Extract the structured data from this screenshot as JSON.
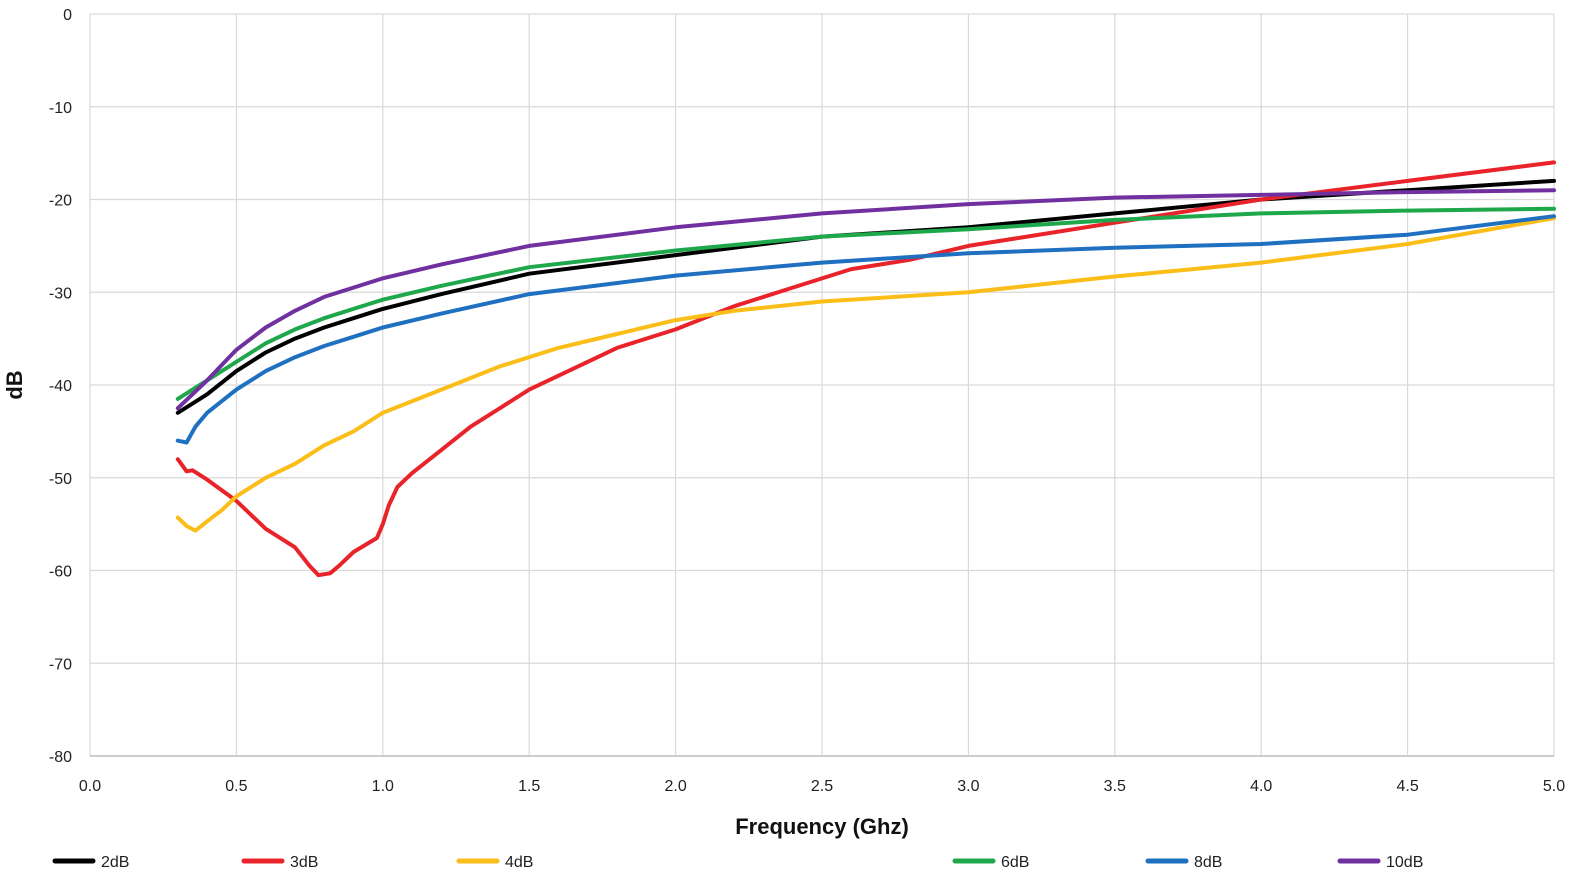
{
  "chart_data": {
    "type": "line",
    "title": "",
    "xlabel": "Frequency (Ghz)",
    "ylabel": "dB",
    "xlim": [
      0.0,
      5.0
    ],
    "ylim": [
      -80,
      0
    ],
    "xticks": [
      0.0,
      0.5,
      1.0,
      1.5,
      2.0,
      2.5,
      3.0,
      3.5,
      4.0,
      4.5,
      5.0
    ],
    "xtick_labels": [
      "0.0",
      "0.5",
      "1.0",
      "1.5",
      "2.0",
      "2.5",
      "3.0",
      "3.5",
      "4.0",
      "4.5",
      "5.0"
    ],
    "yticks": [
      0,
      -10,
      -20,
      -30,
      -40,
      -50,
      -60,
      -70,
      -80
    ],
    "ytick_labels": [
      "0",
      "-10",
      "-20",
      "-30",
      "-40",
      "-50",
      "-60",
      "-70",
      "-80"
    ],
    "grid": true,
    "legend_position": "bottom",
    "series": [
      {
        "name": "2dB",
        "color": "#000000",
        "x": [
          0.3,
          0.35,
          0.4,
          0.5,
          0.6,
          0.7,
          0.8,
          0.9,
          1.0,
          1.2,
          1.5,
          2.0,
          2.5,
          3.0,
          3.5,
          4.0,
          4.5,
          5.0
        ],
        "y": [
          -43,
          -42,
          -41,
          -38.5,
          -36.5,
          -35,
          -33.8,
          -32.8,
          -31.8,
          -30.2,
          -28,
          -26,
          -24,
          -23,
          -21.5,
          -20,
          -19,
          -18
        ]
      },
      {
        "name": "3dB",
        "color": "#e8232a",
        "x": [
          0.3,
          0.33,
          0.35,
          0.4,
          0.5,
          0.6,
          0.7,
          0.75,
          0.78,
          0.82,
          0.85,
          0.9,
          0.98,
          1.0,
          1.02,
          1.05,
          1.1,
          1.2,
          1.3,
          1.4,
          1.5,
          1.6,
          1.7,
          1.8,
          1.9,
          2.0,
          2.2,
          2.4,
          2.6,
          2.8,
          3.0,
          3.2,
          3.5,
          4.0,
          4.5,
          5.0
        ],
        "y": [
          -48,
          -49.3,
          -49.2,
          -50.2,
          -52.5,
          -55.5,
          -57.5,
          -59.5,
          -60.5,
          -60.3,
          -59.5,
          -58,
          -56.5,
          -55,
          -53,
          -51,
          -49.5,
          -47,
          -44.5,
          -42.5,
          -40.5,
          -39,
          -37.5,
          -36,
          -35,
          -34,
          -31.5,
          -29.5,
          -27.5,
          -26.5,
          -25,
          -24,
          -22.5,
          -20,
          -18,
          -16
        ]
      },
      {
        "name": "4dB",
        "color": "#fbbd17",
        "x": [
          0.3,
          0.33,
          0.36,
          0.38,
          0.4,
          0.45,
          0.5,
          0.6,
          0.7,
          0.8,
          0.9,
          1.0,
          1.2,
          1.4,
          1.6,
          1.8,
          2.0,
          2.2,
          2.5,
          3.0,
          3.5,
          4.0,
          4.5,
          5.0
        ],
        "y": [
          -54.3,
          -55.2,
          -55.7,
          -55.2,
          -54.7,
          -53.5,
          -52,
          -50,
          -48.5,
          -46.5,
          -45,
          -43,
          -40.5,
          -38,
          -36,
          -34.5,
          -33,
          -32,
          -31,
          -30,
          -28.3,
          -26.8,
          -24.8,
          -22
        ]
      },
      {
        "name": "6dB",
        "color": "#1ea84b",
        "x": [
          0.3,
          0.35,
          0.4,
          0.5,
          0.6,
          0.7,
          0.8,
          0.9,
          1.0,
          1.2,
          1.5,
          2.0,
          2.5,
          3.0,
          3.5,
          4.0,
          4.5,
          5.0
        ],
        "y": [
          -41.5,
          -40.5,
          -39.5,
          -37.5,
          -35.5,
          -34,
          -32.8,
          -31.8,
          -30.8,
          -29.3,
          -27.3,
          -25.5,
          -24,
          -23.2,
          -22.2,
          -21.5,
          -21.2,
          -21
        ]
      },
      {
        "name": "8dB",
        "color": "#1f70c1",
        "x": [
          0.3,
          0.33,
          0.36,
          0.4,
          0.5,
          0.6,
          0.7,
          0.8,
          0.9,
          1.0,
          1.2,
          1.5,
          2.0,
          2.5,
          3.0,
          3.5,
          4.0,
          4.5,
          5.0
        ],
        "y": [
          -46,
          -46.2,
          -44.5,
          -43,
          -40.5,
          -38.5,
          -37,
          -35.8,
          -34.8,
          -33.8,
          -32.3,
          -30.2,
          -28.2,
          -26.8,
          -25.8,
          -25.2,
          -24.8,
          -23.8,
          -21.8
        ]
      },
      {
        "name": "10dB",
        "color": "#7030a0",
        "x": [
          0.3,
          0.35,
          0.4,
          0.5,
          0.6,
          0.7,
          0.8,
          0.9,
          1.0,
          1.2,
          1.5,
          2.0,
          2.5,
          3.0,
          3.5,
          4.0,
          4.5,
          5.0
        ],
        "y": [
          -42.5,
          -41,
          -39.5,
          -36.2,
          -33.8,
          -32,
          -30.5,
          -29.5,
          -28.5,
          -27,
          -25,
          -23,
          -21.5,
          -20.5,
          -19.8,
          -19.5,
          -19.2,
          -19
        ]
      }
    ]
  }
}
